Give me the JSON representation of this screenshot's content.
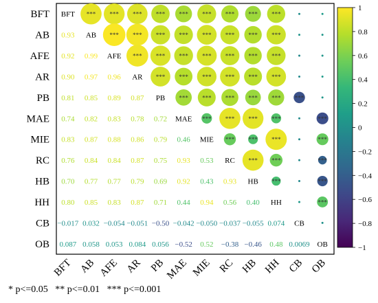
{
  "chart_data": {
    "type": "heatmap",
    "title": "",
    "variables": [
      "BFT",
      "AB",
      "AFE",
      "AR",
      "PB",
      "MAE",
      "MIE",
      "RC",
      "HB",
      "HH",
      "CB",
      "OB"
    ],
    "lower_triangle_text": [
      [
        "0.93"
      ],
      [
        "0.92",
        "0.99"
      ],
      [
        "0.90",
        "0.97",
        "0.96"
      ],
      [
        "0.81",
        "0.85",
        "0.89",
        "0.87"
      ],
      [
        "0.74",
        "0.82",
        "0.83",
        "0.78",
        "0.72"
      ],
      [
        "0.83",
        "0.87",
        "0.88",
        "0.86",
        "0.79",
        "0.46"
      ],
      [
        "0.76",
        "0.84",
        "0.84",
        "0.87",
        "0.75",
        "0.93",
        "0.53"
      ],
      [
        "0.70",
        "0.77",
        "0.77",
        "0.79",
        "0.69",
        "0.92",
        "0.43",
        "0.93"
      ],
      [
        "0.80",
        "0.85",
        "0.83",
        "0.87",
        "0.71",
        "0.44",
        "0.94",
        "0.56",
        "0.40"
      ],
      [
        "−0.017",
        "0.032",
        "−0.054",
        "−0.051",
        "−0.50",
        "−0.042",
        "−0.050",
        "−0.037",
        "−0.055",
        "0.074"
      ],
      [
        "0.087",
        "0.058",
        "0.053",
        "0.084",
        "0.056",
        "−0.52",
        "0.52",
        "−0.38",
        "−0.46",
        "0.48",
        "0.0069"
      ]
    ],
    "significance_marker": "***",
    "colorbar": {
      "min": -1,
      "max": 1,
      "ticks": [
        "1",
        "0.8",
        "0.6",
        "0.4",
        "0.2",
        "0",
        "−0.2",
        "−0.4",
        "−0.6",
        "−0.8",
        "−1"
      ],
      "colormap": "viridis"
    },
    "footnote": "* p<=0.05   ** p<=0.01   *** p<=0.001"
  }
}
